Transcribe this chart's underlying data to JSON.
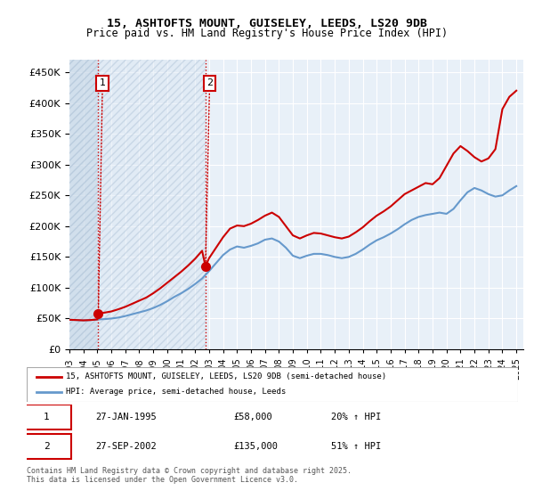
{
  "title1": "15, ASHTOFTS MOUNT, GUISELEY, LEEDS, LS20 9DB",
  "title2": "Price paid vs. HM Land Registry's House Price Index (HPI)",
  "legend_line1": "15, ASHTOFTS MOUNT, GUISELEY, LEEDS, LS20 9DB (semi-detached house)",
  "legend_line2": "HPI: Average price, semi-detached house, Leeds",
  "annotation1_label": "1",
  "annotation1_date": "27-JAN-1995",
  "annotation1_price": "£58,000",
  "annotation1_hpi": "20% ↑ HPI",
  "annotation2_label": "2",
  "annotation2_date": "27-SEP-2002",
  "annotation2_price": "£135,000",
  "annotation2_hpi": "51% ↑ HPI",
  "footer": "Contains HM Land Registry data © Crown copyright and database right 2025.\nThis data is licensed under the Open Government Licence v3.0.",
  "sale_color": "#cc0000",
  "hpi_color": "#6699cc",
  "annotation_box_color": "#cc0000",
  "hatch_color": "#c8d8e8",
  "plot_bg": "#e8f0f8",
  "grid_color": "#ffffff",
  "ylim": [
    0,
    470000
  ],
  "sale1_x": 1995.07,
  "sale1_y": 58000,
  "sale2_x": 2002.74,
  "sale2_y": 135000,
  "hpi_data_x": [
    1993,
    1993.5,
    1994,
    1994.5,
    1995,
    1995.5,
    1996,
    1996.5,
    1997,
    1997.5,
    1998,
    1998.5,
    1999,
    1999.5,
    2000,
    2000.5,
    2001,
    2001.5,
    2002,
    2002.5,
    2003,
    2003.5,
    2004,
    2004.5,
    2005,
    2005.5,
    2006,
    2006.5,
    2007,
    2007.5,
    2008,
    2008.5,
    2009,
    2009.5,
    2010,
    2010.5,
    2011,
    2011.5,
    2012,
    2012.5,
    2013,
    2013.5,
    2014,
    2014.5,
    2015,
    2015.5,
    2016,
    2016.5,
    2017,
    2017.5,
    2018,
    2018.5,
    2019,
    2019.5,
    2020,
    2020.5,
    2021,
    2021.5,
    2022,
    2022.5,
    2023,
    2023.5,
    2024,
    2024.5,
    2025
  ],
  "hpi_data_y": [
    48000,
    47500,
    47000,
    47500,
    48500,
    49000,
    50000,
    51500,
    54000,
    57000,
    60000,
    63000,
    67000,
    72000,
    78000,
    85000,
    91000,
    98000,
    106000,
    115000,
    127000,
    140000,
    153000,
    162000,
    167000,
    165000,
    168000,
    172000,
    178000,
    180000,
    175000,
    165000,
    152000,
    148000,
    152000,
    155000,
    155000,
    153000,
    150000,
    148000,
    150000,
    155000,
    162000,
    170000,
    177000,
    182000,
    188000,
    195000,
    203000,
    210000,
    215000,
    218000,
    220000,
    222000,
    220000,
    228000,
    242000,
    255000,
    262000,
    258000,
    252000,
    248000,
    250000,
    258000,
    265000
  ],
  "price_data_x": [
    1993,
    1993.5,
    1994,
    1994.5,
    1995,
    1995.07,
    1995.5,
    1996,
    1996.5,
    1997,
    1997.5,
    1998,
    1998.5,
    1999,
    1999.5,
    2000,
    2000.5,
    2001,
    2001.5,
    2002,
    2002.5,
    2002.74,
    2003,
    2003.5,
    2004,
    2004.5,
    2005,
    2005.5,
    2006,
    2006.5,
    2007,
    2007.5,
    2008,
    2008.5,
    2009,
    2009.5,
    2010,
    2010.5,
    2011,
    2011.5,
    2012,
    2012.5,
    2013,
    2013.5,
    2014,
    2014.5,
    2015,
    2015.5,
    2016,
    2016.5,
    2017,
    2017.5,
    2018,
    2018.5,
    2019,
    2019.5,
    2020,
    2020.5,
    2021,
    2021.5,
    2022,
    2022.5,
    2023,
    2023.5,
    2024,
    2024.5,
    2025
  ],
  "price_data_y": [
    48000,
    47500,
    47000,
    47500,
    48500,
    58000,
    59500,
    61500,
    65000,
    69000,
    74000,
    79000,
    84000,
    91000,
    99000,
    108000,
    117000,
    126000,
    136000,
    147000,
    160000,
    135000,
    148000,
    165000,
    182000,
    196000,
    201000,
    200000,
    204000,
    210000,
    217000,
    222000,
    215000,
    200000,
    185000,
    180000,
    185000,
    189000,
    188000,
    185000,
    182000,
    180000,
    183000,
    190000,
    198000,
    208000,
    217000,
    224000,
    232000,
    242000,
    252000,
    258000,
    264000,
    270000,
    268000,
    278000,
    298000,
    318000,
    330000,
    322000,
    312000,
    305000,
    310000,
    325000,
    390000,
    410000,
    420000
  ],
  "xmin": 1993,
  "xmax": 2025.5,
  "xtick_years": [
    1993,
    1994,
    1995,
    1996,
    1997,
    1998,
    1999,
    2000,
    2001,
    2002,
    2003,
    2004,
    2005,
    2006,
    2007,
    2008,
    2009,
    2010,
    2011,
    2012,
    2013,
    2014,
    2015,
    2016,
    2017,
    2018,
    2019,
    2020,
    2021,
    2022,
    2023,
    2024,
    2025
  ]
}
